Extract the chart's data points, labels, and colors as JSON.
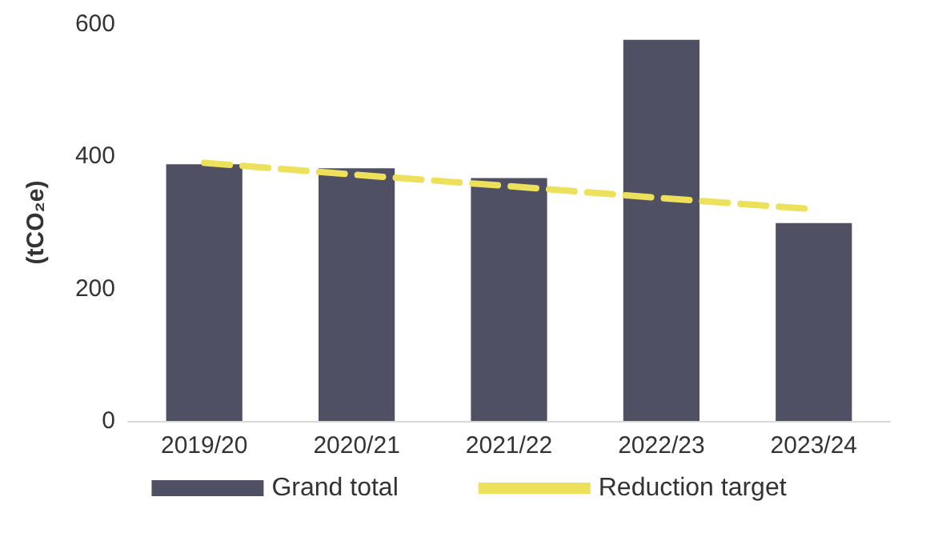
{
  "chart_data": {
    "type": "bar",
    "ylabel": "(tCO₂e)",
    "categories": [
      "2019/20",
      "2020/21",
      "2021/22",
      "2022/23",
      "2023/24"
    ],
    "series": [
      {
        "name": "Grand total",
        "color": "#4f5064",
        "values": [
          388,
          382,
          367,
          576,
          299
        ]
      },
      {
        "name": "Reduction target",
        "type": "line",
        "color": "#ede05a",
        "line_style": "dashed",
        "marker": "none",
        "values": [
          390,
          372,
          355,
          337,
          320
        ]
      }
    ],
    "ylim": [
      0,
      600
    ],
    "yticks": [
      0,
      200,
      400,
      600
    ],
    "grid": false,
    "legend": "bottom"
  }
}
